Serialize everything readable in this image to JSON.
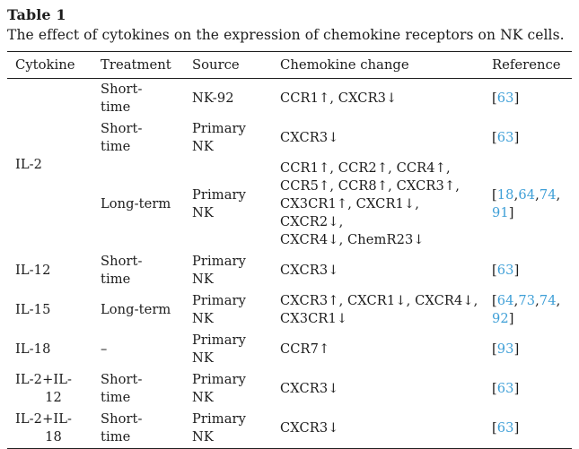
{
  "title": "Table 1",
  "caption": "The effect of cytokines on the expression of chemokine receptors on NK cells.",
  "colors": {
    "link_blue": "#3e9fd7",
    "text": "#1c1c1c",
    "rule": "#1f1f1f"
  },
  "columns": [
    "Cytokine",
    "Treatment",
    "Source",
    "Chemokine change",
    "Reference"
  ],
  "rows": [
    {
      "cytokine": [
        "IL-2"
      ],
      "treatment": [
        "Short-",
        "time"
      ],
      "source": [
        "NK-92"
      ],
      "chemokine": [
        "CCR1↑, CXCR3↓"
      ],
      "reference": [
        [
          {
            "t": "[",
            "link": false
          },
          {
            "t": "63",
            "link": true
          },
          {
            "t": "]",
            "link": false
          }
        ]
      ]
    },
    {
      "cytokine": [],
      "treatment": [
        "Short-",
        "time"
      ],
      "source": [
        "Primary",
        "NK"
      ],
      "chemokine": [
        "CXCR3↓"
      ],
      "reference": [
        [
          {
            "t": "[",
            "link": false
          },
          {
            "t": "63",
            "link": true
          },
          {
            "t": "]",
            "link": false
          }
        ]
      ]
    },
    {
      "cytokine": [],
      "treatment": [
        "Long-term"
      ],
      "source": [
        "Primary",
        "NK"
      ],
      "chemokine": [
        "CCR1↑, CCR2↑, CCR4↑,",
        "CCR5↑, CCR8↑, CXCR3↑,",
        "CX3CR1↑, CXCR1↓, CXCR2↓,",
        "CXCR4↓, ChemR23↓"
      ],
      "reference": [
        [
          {
            "t": "[",
            "link": false
          },
          {
            "t": "18",
            "link": true
          },
          {
            "t": ",",
            "link": false
          },
          {
            "t": "64",
            "link": true
          },
          {
            "t": ",",
            "link": false
          },
          {
            "t": "74",
            "link": true
          },
          {
            "t": ",",
            "link": false
          }
        ],
        [
          {
            "t": "91",
            "link": true
          },
          {
            "t": "]",
            "link": false
          }
        ]
      ]
    },
    {
      "cytokine": [
        "IL-12"
      ],
      "treatment": [
        "Short-",
        "time"
      ],
      "source": [
        "Primary",
        "NK"
      ],
      "chemokine": [
        "CXCR3↓"
      ],
      "reference": [
        [
          {
            "t": "[",
            "link": false
          },
          {
            "t": "63",
            "link": true
          },
          {
            "t": "]",
            "link": false
          }
        ]
      ]
    },
    {
      "cytokine": [
        "IL-15"
      ],
      "treatment": [
        "Long-term"
      ],
      "source": [
        "Primary",
        "NK"
      ],
      "chemokine": [
        "CXCR3↑, CXCR1↓, CXCR4↓,",
        "CX3CR1↓"
      ],
      "reference": [
        [
          {
            "t": "[",
            "link": false
          },
          {
            "t": "64",
            "link": true
          },
          {
            "t": ",",
            "link": false
          },
          {
            "t": "73",
            "link": true
          },
          {
            "t": ",",
            "link": false
          },
          {
            "t": "74",
            "link": true
          },
          {
            "t": ",",
            "link": false
          }
        ],
        [
          {
            "t": "92",
            "link": true
          },
          {
            "t": "]",
            "link": false
          }
        ]
      ]
    },
    {
      "cytokine": [
        "IL-18"
      ],
      "treatment": [
        "–"
      ],
      "source": [
        "Primary",
        "NK"
      ],
      "chemokine": [
        "CCR7↑"
      ],
      "reference": [
        [
          {
            "t": "[",
            "link": false
          },
          {
            "t": "93",
            "link": true
          },
          {
            "t": "]",
            "link": false
          }
        ]
      ]
    },
    {
      "cytokine": [
        "IL-2+IL-",
        "12"
      ],
      "treatment": [
        "Short-",
        "time"
      ],
      "source": [
        "Primary",
        "NK"
      ],
      "chemokine": [
        "CXCR3↓"
      ],
      "reference": [
        [
          {
            "t": "[",
            "link": false
          },
          {
            "t": "63",
            "link": true
          },
          {
            "t": "]",
            "link": false
          }
        ]
      ]
    },
    {
      "cytokine": [
        "IL-2+IL-",
        "18"
      ],
      "treatment": [
        "Short-",
        "time"
      ],
      "source": [
        "Primary",
        "NK"
      ],
      "chemokine": [
        "CXCR3↓"
      ],
      "reference": [
        [
          {
            "t": "[",
            "link": false
          },
          {
            "t": "63",
            "link": true
          },
          {
            "t": "]",
            "link": false
          }
        ]
      ]
    }
  ]
}
